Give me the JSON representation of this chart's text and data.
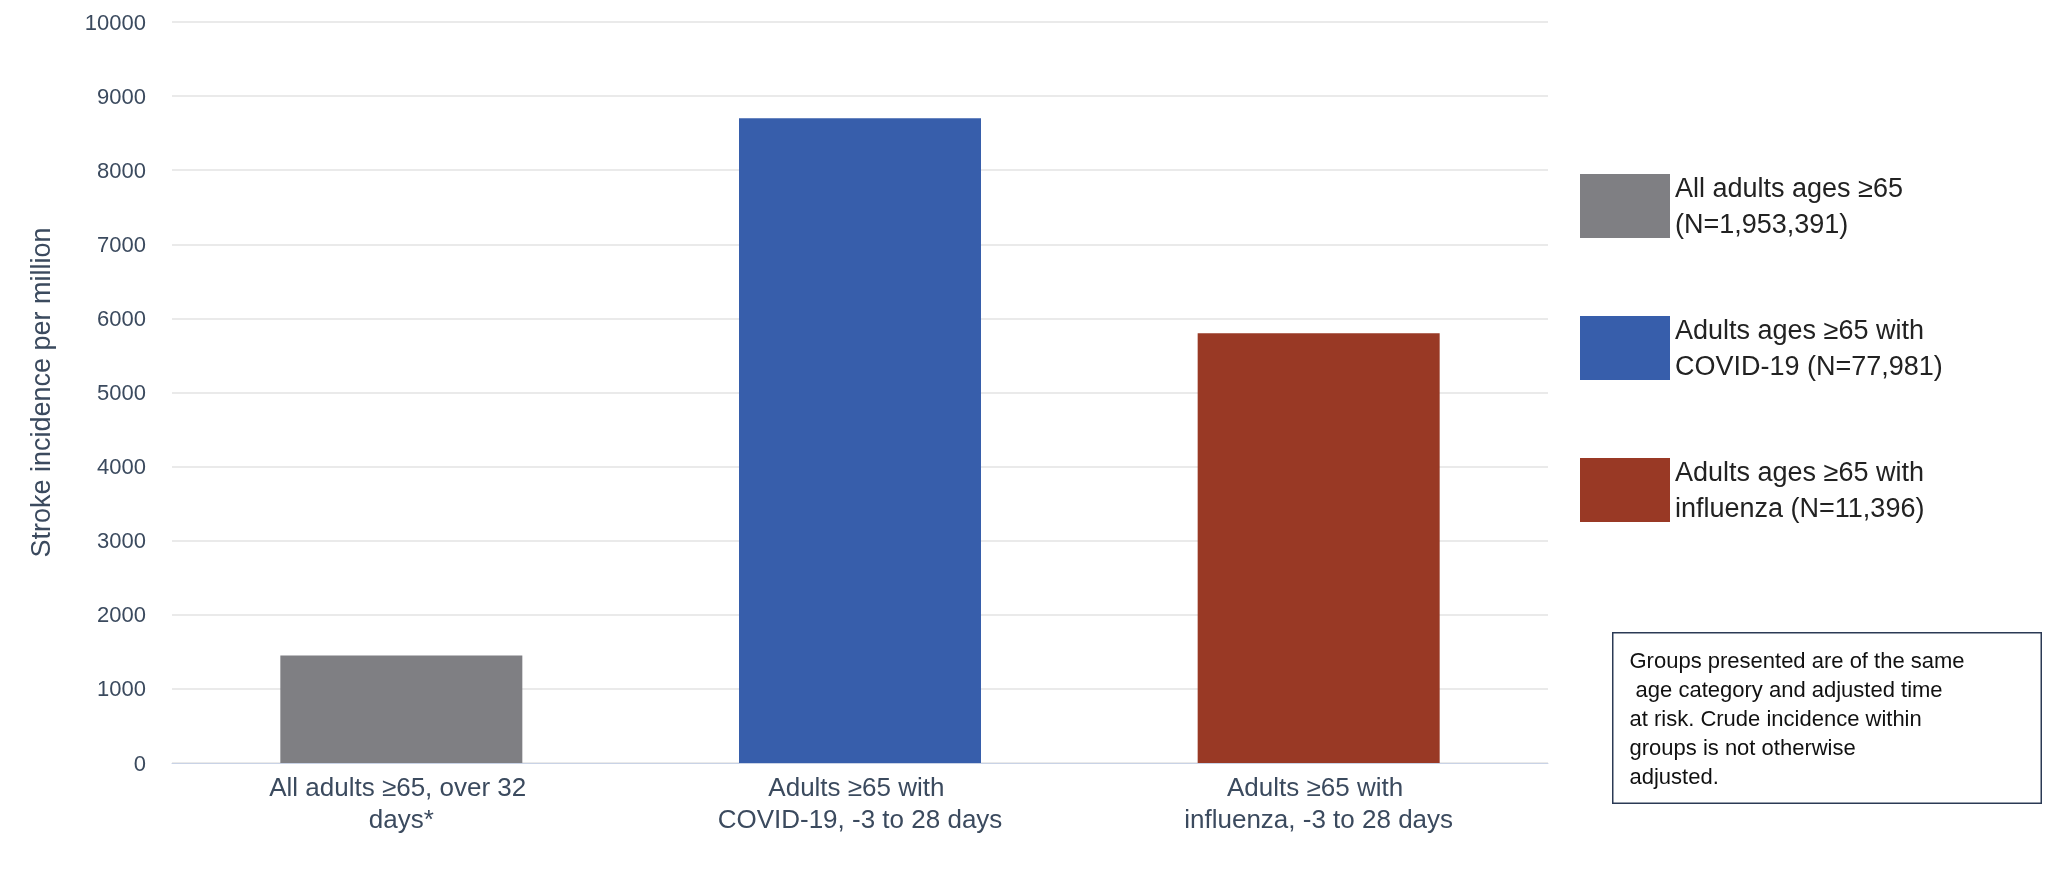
{
  "chart_data": {
    "type": "bar",
    "ylabel": "Stroke incidence per million",
    "categories": [
      "All adults ≥65, over 32 days*",
      "Adults ≥65 with COVID-19, -3 to 28 days",
      "Adults ≥65 with influenza, -3 to 28 days"
    ],
    "series": [
      {
        "name": "All adults ages ≥65 (N=1,953,391)",
        "color": "#7f7f83",
        "values": [
          1450,
          null,
          null
        ]
      },
      {
        "name": "Adults ages ≥65 with COVID-19 (N=77,981)",
        "color": "#375eab",
        "values": [
          null,
          8700,
          null
        ]
      },
      {
        "name": "Adults ages ≥65 with influenza (N=11,396)",
        "color": "#993925",
        "values": [
          null,
          null,
          5800
        ]
      }
    ],
    "ylim": [
      0,
      10000
    ],
    "yticks": [
      0,
      1000,
      2000,
      3000,
      4000,
      5000,
      6000,
      7000,
      8000,
      9000,
      10000
    ],
    "grid": "y",
    "legend": "right",
    "annotations": [
      "Groups presented are of the same age category and adjusted time at risk. Crude incidence within groups is not otherwise adjusted."
    ]
  }
}
